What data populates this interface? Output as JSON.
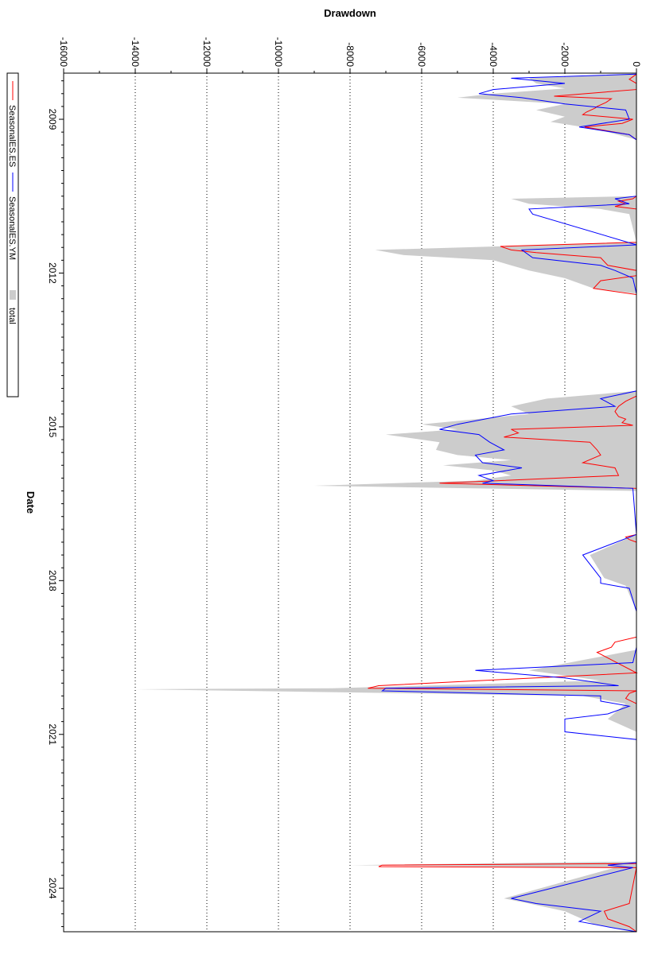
{
  "chart_data": {
    "type": "area",
    "title": "",
    "ylabel": "Drawdown",
    "xlabel": "Date",
    "orientation": "rotated-90-clockwise",
    "ylim": [
      -16000,
      0
    ],
    "y_ticks": [
      0,
      -2000,
      -4000,
      -6000,
      -8000,
      -10000,
      -12000,
      -14000,
      -16000
    ],
    "y_tick_labels": [
      "0",
      "-2000",
      "-4000",
      "-6000",
      "-8000",
      "-10000",
      "-12000",
      "-14000",
      "-16000"
    ],
    "xlim": [
      2008.1,
      2024.85
    ],
    "x_ticks": [
      2009,
      2012,
      2015,
      2018,
      2021,
      2024
    ],
    "x_tick_labels": [
      "2009",
      "2012",
      "2015",
      "2018",
      "2021",
      "2024"
    ],
    "grid": "dotted, y only",
    "legend_position": "left",
    "colors": {
      "SeasonalES.ES": "#ff0000",
      "SeasonalES.YM": "#0000ff",
      "total": "#cccccc"
    },
    "series": [
      {
        "name": "SeasonalES.ES",
        "style": "line",
        "x": [
          2008.12,
          2008.22,
          2008.3,
          2008.42,
          2008.55,
          2008.6,
          2008.67,
          2008.75,
          2008.78,
          2008.86,
          2008.91,
          2009.0,
          2009.08,
          2009.15,
          2009.3,
          2009.4,
          2009.5,
          2010.5,
          2010.55,
          2010.6,
          2010.65,
          2010.7,
          2010.75,
          2011.4,
          2011.48,
          2011.55,
          2011.6,
          2011.7,
          2011.85,
          2011.95,
          2012.05,
          2012.15,
          2012.3,
          2012.42,
          2014.4,
          2014.5,
          2014.6,
          2014.7,
          2014.8,
          2014.85,
          2014.92,
          2014.97,
          2015.05,
          2015.12,
          2015.2,
          2015.3,
          2015.45,
          2015.55,
          2015.7,
          2015.8,
          2015.95,
          2016.1,
          2016.2,
          2017.1,
          2017.15,
          2017.2,
          2017.25,
          2018.0,
          2018.3,
          2018.6,
          2019.1,
          2019.2,
          2019.3,
          2019.4,
          2019.8,
          2020.05,
          2020.1,
          2020.15,
          2020.2,
          2020.3,
          2020.4,
          2023.52,
          2023.55,
          2023.58,
          2023.6,
          2024.3,
          2024.45,
          2024.6,
          2024.75,
          2024.85
        ],
        "values": [
          0,
          -200,
          0,
          0,
          -2300,
          -700,
          -850,
          -1100,
          -1150,
          -1400,
          -1500,
          -100,
          -400,
          -1450,
          -200,
          0,
          0,
          0,
          -100,
          -500,
          -300,
          -600,
          0,
          0,
          -3800,
          -3500,
          -2800,
          -1000,
          -800,
          0,
          0,
          -1000,
          -1200,
          0,
          0,
          -300,
          -500,
          -600,
          -500,
          -300,
          -400,
          -100,
          -3500,
          -3300,
          -3700,
          -1300,
          -1100,
          -1000,
          -1500,
          -600,
          -500,
          -5500,
          0,
          0,
          -300,
          -200,
          0,
          0,
          0,
          0,
          0,
          -600,
          -700,
          -1100,
          0,
          -7200,
          -7500,
          0,
          -200,
          -300,
          0,
          0,
          -7100,
          -7200,
          0,
          -200,
          -900,
          -800,
          -200,
          0
        ]
      },
      {
        "name": "SeasonalES.YM",
        "style": "line",
        "x": [
          2008.12,
          2008.2,
          2008.3,
          2008.42,
          2008.5,
          2008.58,
          2008.7,
          2008.82,
          2009.0,
          2009.15,
          2009.3,
          2009.4,
          2010.5,
          2010.55,
          2010.65,
          2010.75,
          2010.85,
          2011.45,
          2011.55,
          2011.7,
          2011.85,
          2011.95,
          2012.1,
          2012.4,
          2014.3,
          2014.45,
          2014.6,
          2014.75,
          2014.95,
          2015.05,
          2015.15,
          2015.3,
          2015.45,
          2015.55,
          2015.7,
          2015.8,
          2015.95,
          2016.05,
          2016.1,
          2016.2,
          2017.1,
          2017.5,
          2017.95,
          2018.05,
          2018.15,
          2018.6,
          2019.3,
          2019.6,
          2019.75,
          2019.9,
          2020.05,
          2020.1,
          2020.15,
          2020.25,
          2020.35,
          2020.45,
          2020.6,
          2020.7,
          2020.95,
          2021.1,
          2023.5,
          2023.55,
          2023.6,
          2024.2,
          2024.3,
          2024.45,
          2024.65,
          2024.78,
          2024.85
        ],
        "values": [
          0,
          -3500,
          -2000,
          -4000,
          -4400,
          -3200,
          -2000,
          -300,
          -200,
          -1600,
          -200,
          0,
          0,
          -600,
          -200,
          -3000,
          -2900,
          0,
          -3200,
          -2900,
          -1000,
          -600,
          -100,
          0,
          0,
          -1000,
          -600,
          -3500,
          -5000,
          -5500,
          -4400,
          -4100,
          -3700,
          -4500,
          -4300,
          -3200,
          -4400,
          -4000,
          -4300,
          -100,
          0,
          -1500,
          -1000,
          -1000,
          -200,
          0,
          0,
          -100,
          -4500,
          -2000,
          -500,
          -7000,
          -7100,
          -1000,
          -1000,
          -200,
          -800,
          -2000,
          -2000,
          0,
          0,
          -800,
          -100,
          -3500,
          -2800,
          -1000,
          -1600,
          -600,
          0
        ]
      },
      {
        "name": "total",
        "style": "area",
        "x": [
          2008.12,
          2008.2,
          2008.3,
          2008.4,
          2008.5,
          2008.58,
          2008.7,
          2008.82,
          2008.95,
          2009.05,
          2009.15,
          2009.25,
          2009.4,
          2010.5,
          2010.55,
          2010.65,
          2010.75,
          2010.85,
          2011.4,
          2011.55,
          2011.65,
          2011.75,
          2011.95,
          2012.1,
          2012.3,
          2012.4,
          2014.3,
          2014.45,
          2014.6,
          2014.75,
          2014.95,
          2015.05,
          2015.15,
          2015.3,
          2015.45,
          2015.55,
          2015.65,
          2015.75,
          2015.85,
          2015.95,
          2016.05,
          2016.15,
          2016.25,
          2017.1,
          2017.5,
          2017.95,
          2018.1,
          2018.6,
          2019.35,
          2019.55,
          2019.75,
          2019.95,
          2020.1,
          2020.12,
          2020.25,
          2020.4,
          2020.7,
          2020.95,
          2023.48,
          2023.55,
          2023.6,
          2024.2,
          2024.3,
          2024.45,
          2024.7,
          2024.85
        ],
        "values": [
          0,
          -3000,
          -2800,
          -2000,
          -4000,
          -5000,
          -2000,
          -2800,
          -2000,
          -2400,
          -1500,
          -800,
          0,
          0,
          -3500,
          -3000,
          -1000,
          -200,
          0,
          -7300,
          -6500,
          -4000,
          -3000,
          -2000,
          -1200,
          0,
          0,
          -2500,
          -3500,
          -3000,
          -6000,
          -5000,
          -7000,
          -5500,
          -5600,
          -5000,
          -3500,
          -5400,
          -4000,
          -3500,
          -4500,
          -9000,
          0,
          0,
          -1300,
          -900,
          -300,
          0,
          0,
          -1500,
          -3000,
          -1000,
          -8500,
          -14000,
          -1500,
          -300,
          -800,
          0,
          0,
          -8000,
          -600,
          -3700,
          -3000,
          -2000,
          -1200,
          0
        ]
      }
    ],
    "legend": [
      "SeasonalES.ES",
      "SeasonalES.YM",
      "total"
    ]
  }
}
